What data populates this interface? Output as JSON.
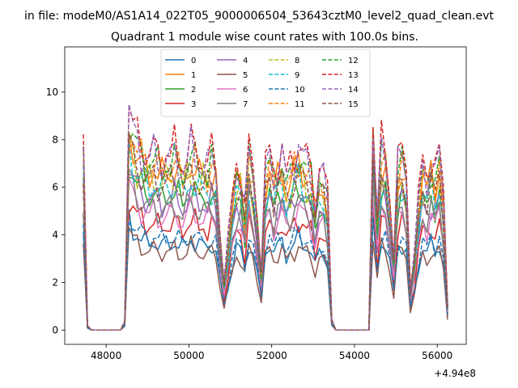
{
  "figure": {
    "suptitle": "in file: modeM0/AS1A14_022T05_9000006504_53643cztM0_level2_quad_clean.evt",
    "offset_label": "+4.94e8"
  },
  "chart_data": {
    "type": "line",
    "title": "Quadrant 1 module wise count rates with 100.0s bins.",
    "xlabel": "",
    "ylabel": "",
    "x_offset": 494000000,
    "xlim": [
      47000,
      56700
    ],
    "ylim": [
      -0.6,
      11.9
    ],
    "xticks": [
      48000,
      50000,
      52000,
      54000,
      56000
    ],
    "xtick_labels": [
      "48000",
      "50000",
      "52000",
      "54000",
      "56000"
    ],
    "yticks": [
      0,
      2,
      4,
      6,
      8,
      10
    ],
    "ytick_labels": [
      "0",
      "2",
      "4",
      "6",
      "8",
      "10"
    ],
    "grid": false,
    "legend_position": "top-center",
    "profile": {
      "x": [
        47450,
        47550,
        47650,
        47750,
        47850,
        47950,
        48050,
        48150,
        48250,
        48350,
        48450,
        48550,
        48650,
        48750,
        48850,
        48950,
        49050,
        49150,
        49250,
        49350,
        49450,
        49550,
        49650,
        49750,
        49850,
        49950,
        50050,
        50150,
        50250,
        50350,
        50450,
        50550,
        50650,
        50750,
        50850,
        50950,
        51050,
        51150,
        51250,
        51350,
        51450,
        51550,
        51650,
        51750,
        51850,
        51950,
        52050,
        52150,
        52250,
        52350,
        52450,
        52550,
        52650,
        52750,
        52850,
        52950,
        53050,
        53150,
        53250,
        53350,
        53450,
        53550,
        53650,
        53750,
        53850,
        53950,
        54050,
        54150,
        54250,
        54350,
        54450,
        54550,
        54650,
        54750,
        54850,
        54950,
        55050,
        55150,
        55250,
        55350,
        55450,
        55550,
        55650,
        55750,
        55850,
        55950,
        56050,
        56150,
        56250
      ],
      "y": [
        0.85,
        0.02,
        0,
        0,
        0,
        0,
        0,
        0,
        0,
        0,
        0.04,
        1.0,
        0.92,
        0.86,
        0.83,
        0.8,
        0.79,
        0.81,
        0.78,
        0.76,
        0.8,
        0.78,
        0.81,
        0.77,
        0.74,
        0.79,
        0.83,
        0.8,
        0.76,
        0.78,
        0.75,
        0.79,
        0.73,
        0.45,
        0.23,
        0.4,
        0.6,
        0.74,
        0.73,
        0.55,
        0.82,
        0.7,
        0.52,
        0.28,
        0.74,
        0.79,
        0.7,
        0.76,
        0.81,
        0.69,
        0.73,
        0.79,
        0.84,
        0.8,
        0.76,
        0.73,
        0.57,
        0.73,
        0.7,
        0.6,
        0.05,
        0,
        0,
        0,
        0,
        0,
        0,
        0,
        0,
        0,
        0.97,
        0.52,
        0.83,
        0.78,
        0.6,
        0.35,
        0.76,
        0.8,
        0.7,
        0.2,
        0.35,
        0.6,
        0.75,
        0.7,
        0.78,
        0.72,
        0.8,
        0.6,
        0.12
      ]
    },
    "series": [
      {
        "name": "0",
        "color": "#1f77b4",
        "dashed": false,
        "scale": 4.6,
        "phase": 0.0
      },
      {
        "name": "1",
        "color": "#ff7f0e",
        "dashed": false,
        "scale": 8.4,
        "phase": 0.7
      },
      {
        "name": "2",
        "color": "#2ca02c",
        "dashed": false,
        "scale": 7.2,
        "phase": 1.4
      },
      {
        "name": "3",
        "color": "#d62728",
        "dashed": false,
        "scale": 5.6,
        "phase": 2.1
      },
      {
        "name": "4",
        "color": "#9467bd",
        "dashed": false,
        "scale": 6.9,
        "phase": 2.8
      },
      {
        "name": "5",
        "color": "#8c564b",
        "dashed": false,
        "scale": 4.2,
        "phase": 3.5
      },
      {
        "name": "6",
        "color": "#e377c2",
        "dashed": false,
        "scale": 6.1,
        "phase": 4.2
      },
      {
        "name": "7",
        "color": "#7f7f7f",
        "dashed": false,
        "scale": 6.5,
        "phase": 4.9
      },
      {
        "name": "8",
        "color": "#bcbd22",
        "dashed": true,
        "scale": 8.0,
        "phase": 5.6
      },
      {
        "name": "9",
        "color": "#17becf",
        "dashed": true,
        "scale": 7.6,
        "phase": 0.35
      },
      {
        "name": "10",
        "color": "#1f77b4",
        "dashed": true,
        "scale": 4.9,
        "phase": 1.05
      },
      {
        "name": "11",
        "color": "#ff7f0e",
        "dashed": true,
        "scale": 8.6,
        "phase": 1.75
      },
      {
        "name": "12",
        "color": "#2ca02c",
        "dashed": true,
        "scale": 8.8,
        "phase": 2.45
      },
      {
        "name": "13",
        "color": "#d62728",
        "dashed": true,
        "scale": 9.4,
        "phase": 3.15
      },
      {
        "name": "14",
        "color": "#9467bd",
        "dashed": true,
        "scale": 9.1,
        "phase": 3.85
      },
      {
        "name": "15",
        "color": "#8c564b",
        "dashed": true,
        "scale": 7.9,
        "phase": 4.55
      }
    ]
  }
}
